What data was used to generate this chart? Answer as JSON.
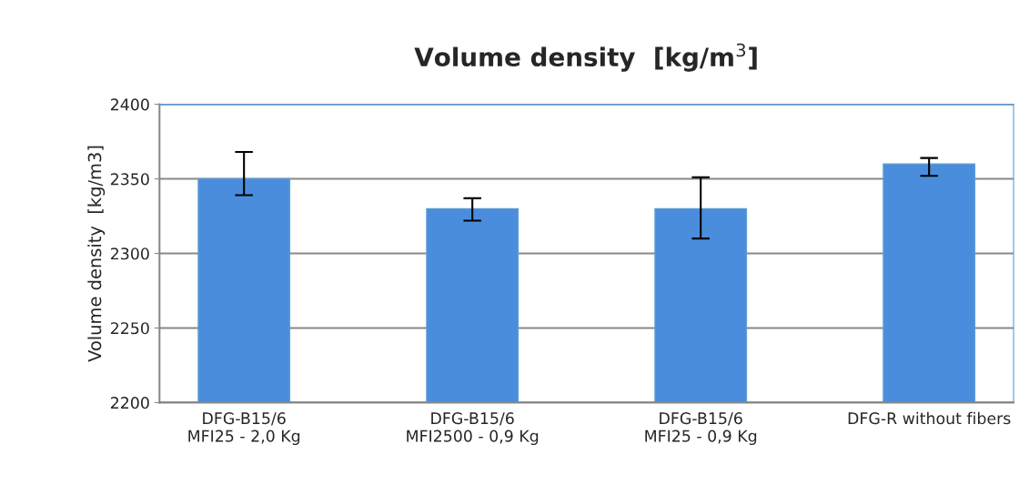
{
  "chart_data": {
    "type": "bar",
    "title": "Volume density  [kg/m$^{3}$]",
    "ylabel": "Volume density  [kg/m3]",
    "categories": [
      "DFG-B15/6\nMFI25 - 2,0 Kg",
      "DFG-B15/6\nMFI2500 - 0,9 Kg",
      "DFG-B15/6\nMFI25 - 0,9 Kg",
      "DFG-R without fibers"
    ],
    "values": [
      2350,
      2330,
      2330,
      2360
    ],
    "errors": [
      [
        2339,
        2368
      ],
      [
        2322,
        2337
      ],
      [
        2310,
        2351
      ],
      [
        2352,
        2364
      ]
    ],
    "color": "#4a8ddc",
    "ylim": [
      2200,
      2400
    ],
    "yticks": [
      2200,
      2250,
      2300,
      2350,
      2400
    ],
    "grid": "y"
  }
}
